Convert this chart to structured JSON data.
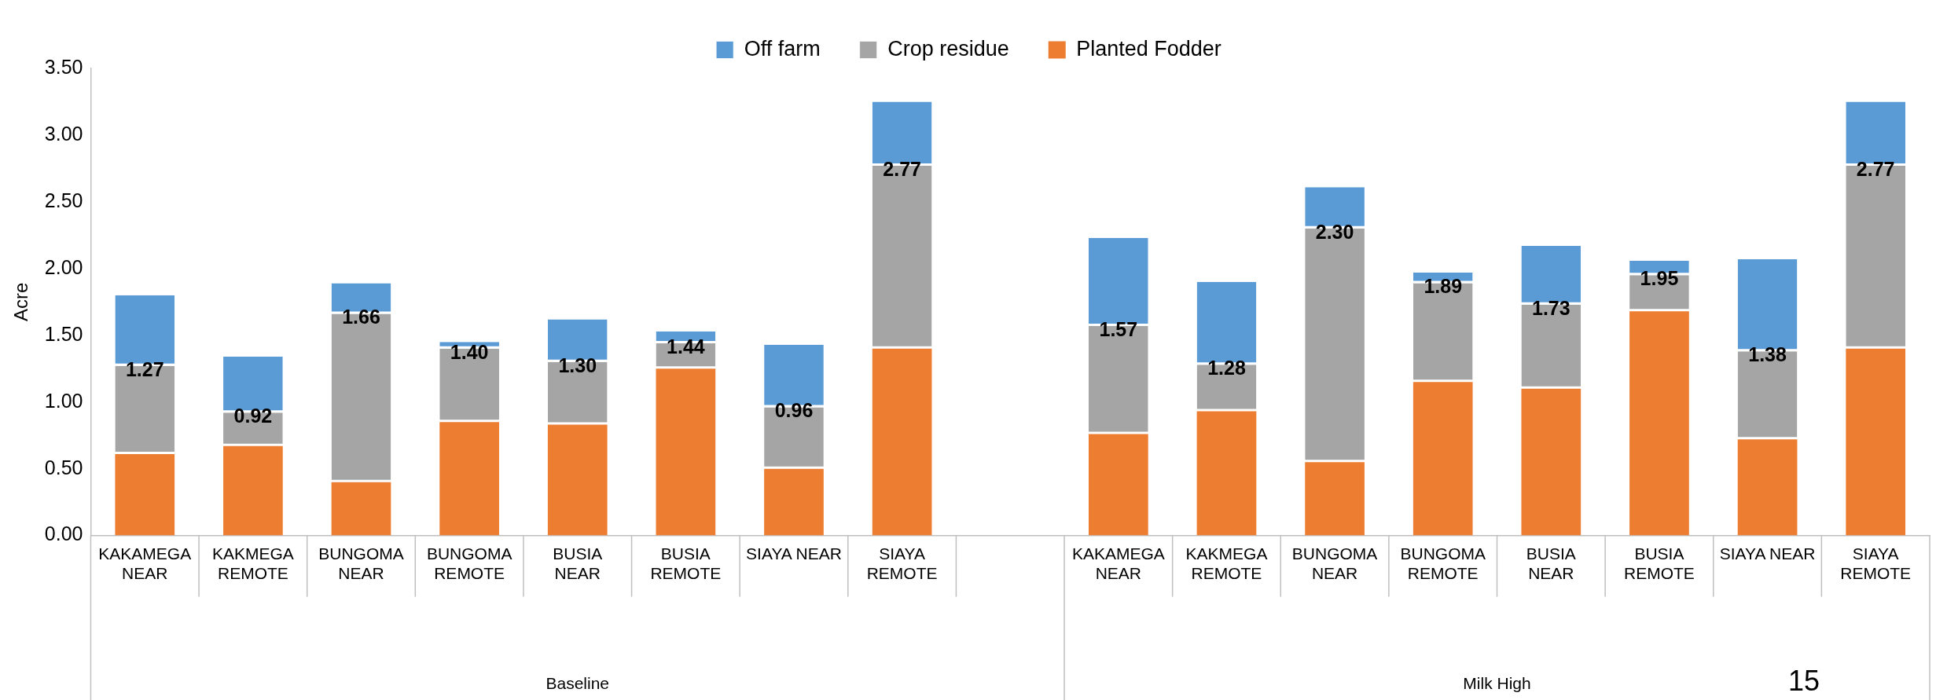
{
  "chart_data": {
    "type": "bar",
    "stacked": true,
    "ylabel": "Acre",
    "categories": [
      "KAKAMEGA NEAR",
      "KAKMEGA REMOTE",
      "BUNGOMA NEAR",
      "BUNGOMA REMOTE",
      "BUSIA NEAR",
      "BUSIA REMOTE",
      "SIAYA NEAR",
      "SIAYA REMOTE",
      null,
      "KAKAMEGA NEAR",
      "KAKMEGA REMOTE",
      "BUNGOMA NEAR",
      "BUNGOMA REMOTE",
      "BUSIA NEAR",
      "BUSIA REMOTE",
      "SIAYA NEAR",
      "SIAYA REMOTE"
    ],
    "series": [
      {
        "name": "Planted Fodder",
        "color": "#ed7d31",
        "values": [
          0.61,
          0.67,
          0.4,
          0.85,
          0.83,
          1.25,
          0.5,
          1.4,
          null,
          0.76,
          0.93,
          0.55,
          1.15,
          1.1,
          1.68,
          0.72,
          1.4
        ]
      },
      {
        "name": "Crop residue",
        "color": "#a5a5a5",
        "values": [
          0.66,
          0.25,
          1.26,
          0.55,
          0.47,
          0.19,
          0.46,
          1.37,
          null,
          0.81,
          0.35,
          1.75,
          0.74,
          0.63,
          0.27,
          0.66,
          1.37
        ]
      },
      {
        "name": "Off farm",
        "color": "#5b9bd5",
        "values": [
          0.53,
          0.42,
          0.23,
          0.05,
          0.32,
          0.09,
          0.47,
          0.48,
          null,
          0.66,
          0.62,
          0.31,
          0.08,
          0.44,
          0.11,
          0.69,
          0.48
        ]
      }
    ],
    "ylim": [
      0,
      3.5
    ],
    "yticks": [
      {
        "value": 0,
        "label": "0.00"
      },
      {
        "value": 0.5,
        "label": "0.50"
      },
      {
        "value": 1,
        "label": "1.00"
      },
      {
        "value": 1.5,
        "label": "1.50"
      },
      {
        "value": 2,
        "label": "2.00"
      },
      {
        "value": 2.5,
        "label": "2.50"
      },
      {
        "value": 3,
        "label": "3.00"
      },
      {
        "value": 3.5,
        "label": "3.50"
      }
    ],
    "grid": false,
    "legend": "top",
    "annotations": [
      "Baseline",
      "Milk High",
      "15",
      "1.27",
      "0.92",
      "1.66",
      "1.40",
      "1.30",
      "1.44",
      "0.96",
      "2.77",
      "1.57",
      "1.28",
      "2.30",
      "1.89",
      "1.73",
      "1.95",
      "1.38",
      "2.77"
    ]
  }
}
